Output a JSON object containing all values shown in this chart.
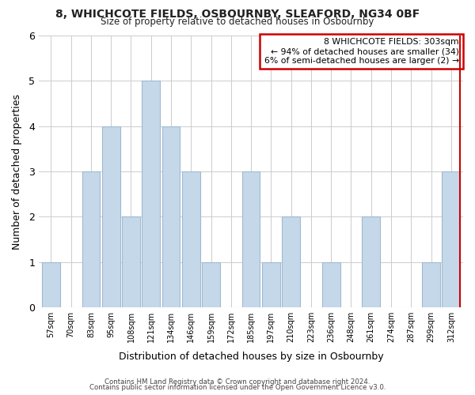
{
  "title1": "8, WHICHCOTE FIELDS, OSBOURNBY, SLEAFORD, NG34 0BF",
  "title2": "Size of property relative to detached houses in Osbournby",
  "xlabel": "Distribution of detached houses by size in Osbournby",
  "ylabel": "Number of detached properties",
  "bar_labels": [
    "57sqm",
    "70sqm",
    "83sqm",
    "95sqm",
    "108sqm",
    "121sqm",
    "134sqm",
    "146sqm",
    "159sqm",
    "172sqm",
    "185sqm",
    "197sqm",
    "210sqm",
    "223sqm",
    "236sqm",
    "248sqm",
    "261sqm",
    "274sqm",
    "287sqm",
    "299sqm",
    "312sqm"
  ],
  "bar_values": [
    1,
    0,
    3,
    4,
    2,
    5,
    4,
    3,
    1,
    0,
    3,
    1,
    2,
    0,
    1,
    0,
    2,
    0,
    0,
    1,
    3
  ],
  "bar_facecolor": "#c5d8ea",
  "bar_edgecolor": "#a0b8d0",
  "highlight_line_color": "#cc0000",
  "ylim": [
    0,
    6
  ],
  "yticks": [
    0,
    1,
    2,
    3,
    4,
    5,
    6
  ],
  "annotation_line1": "8 WHICHCOTE FIELDS: 303sqm",
  "annotation_line2": "← 94% of detached houses are smaller (34)",
  "annotation_line3": "6% of semi-detached houses are larger (2) →",
  "footer1": "Contains HM Land Registry data © Crown copyright and database right 2024.",
  "footer2": "Contains public sector information licensed under the Open Government Licence v3.0.",
  "grid_color": "#cccccc",
  "bg_color": "#ffffff"
}
